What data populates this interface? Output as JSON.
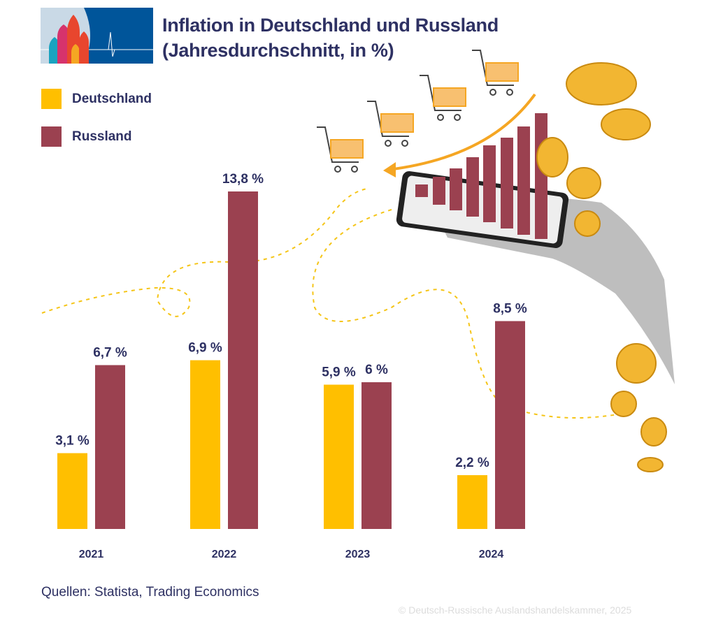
{
  "header": {
    "title_line1": "Inflation in Deutschland und Russland",
    "title_line2": "(Jahresdurchschnitt, in %)"
  },
  "chart_data": {
    "type": "bar",
    "title": "Inflation in Deutschland und Russland (Jahresdurchschnitt, in %)",
    "categories": [
      "2021",
      "2022",
      "2023",
      "2024"
    ],
    "series": [
      {
        "name": "Deutschland",
        "color": "#FFBF00",
        "values": [
          3.1,
          6.9,
          5.9,
          2.2
        ],
        "labels": [
          "3,1 %",
          "6,9 %",
          "5,9 %",
          "2,2 %"
        ]
      },
      {
        "name": "Russland",
        "color": "#9B4150",
        "values": [
          6.7,
          13.8,
          6.0,
          8.5
        ],
        "labels": [
          "6,7 %",
          "13,8 %",
          "6 %",
          "8,5 %"
        ]
      }
    ],
    "ylim": [
      0,
      14
    ],
    "grid": false,
    "legend": "top-left",
    "xlabel": "",
    "ylabel": ""
  },
  "footer": {
    "source": "Quellen: Statista, Trading Economics",
    "copyright": "© Deutsch-Russische Auslandshandelskammer, 2025"
  },
  "colors": {
    "text": "#2E3163",
    "deutschland": "#FFBF00",
    "russland": "#9B4150",
    "logo_blue": "#00559A"
  }
}
